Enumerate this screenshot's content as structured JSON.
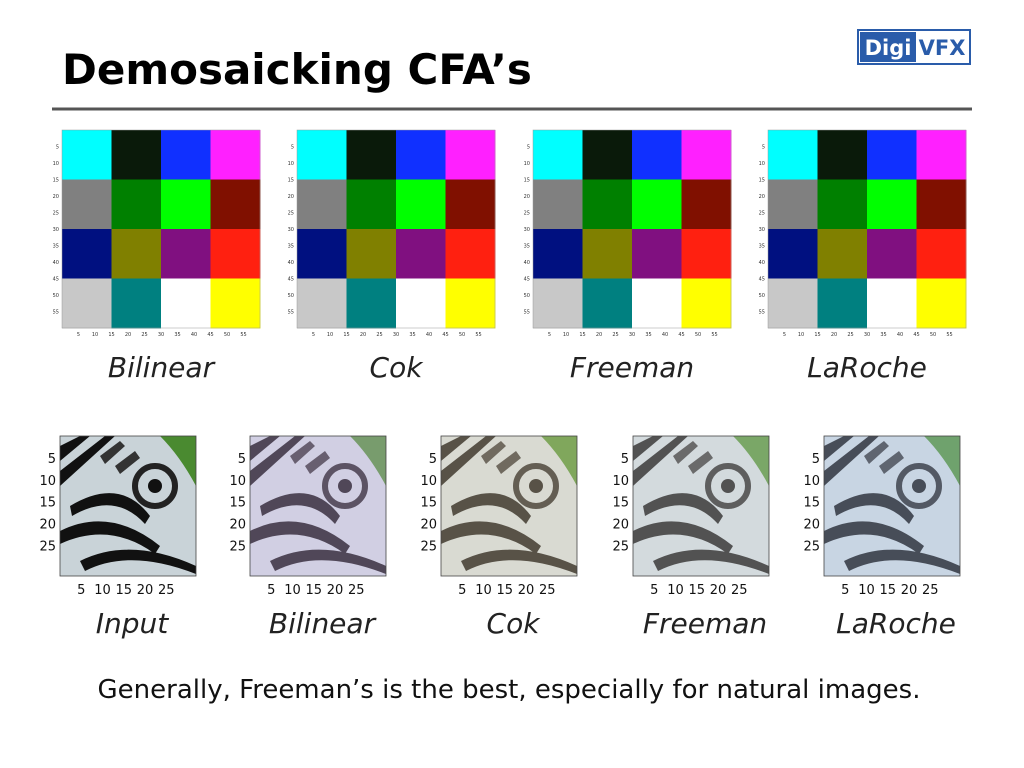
{
  "header": {
    "title": "Demosaicking CFA’s",
    "logo": {
      "part1": "Digi",
      "part2": "VFX"
    }
  },
  "top_row": {
    "tick_labels": [
      "5",
      "10",
      "15",
      "20",
      "25",
      "30",
      "35",
      "40",
      "45",
      "50",
      "55"
    ],
    "panels": [
      "Bilinear",
      "Cok",
      "Freeman",
      "LaRoche"
    ]
  },
  "bottom_row": {
    "tick_labels": [
      "5",
      "10",
      "15",
      "20",
      "25"
    ],
    "panels": [
      "Input",
      "Bilinear",
      "Cok",
      "Freeman",
      "LaRoche"
    ]
  },
  "caption": "Generally, Freeman’s is the best, especially for natural images."
}
